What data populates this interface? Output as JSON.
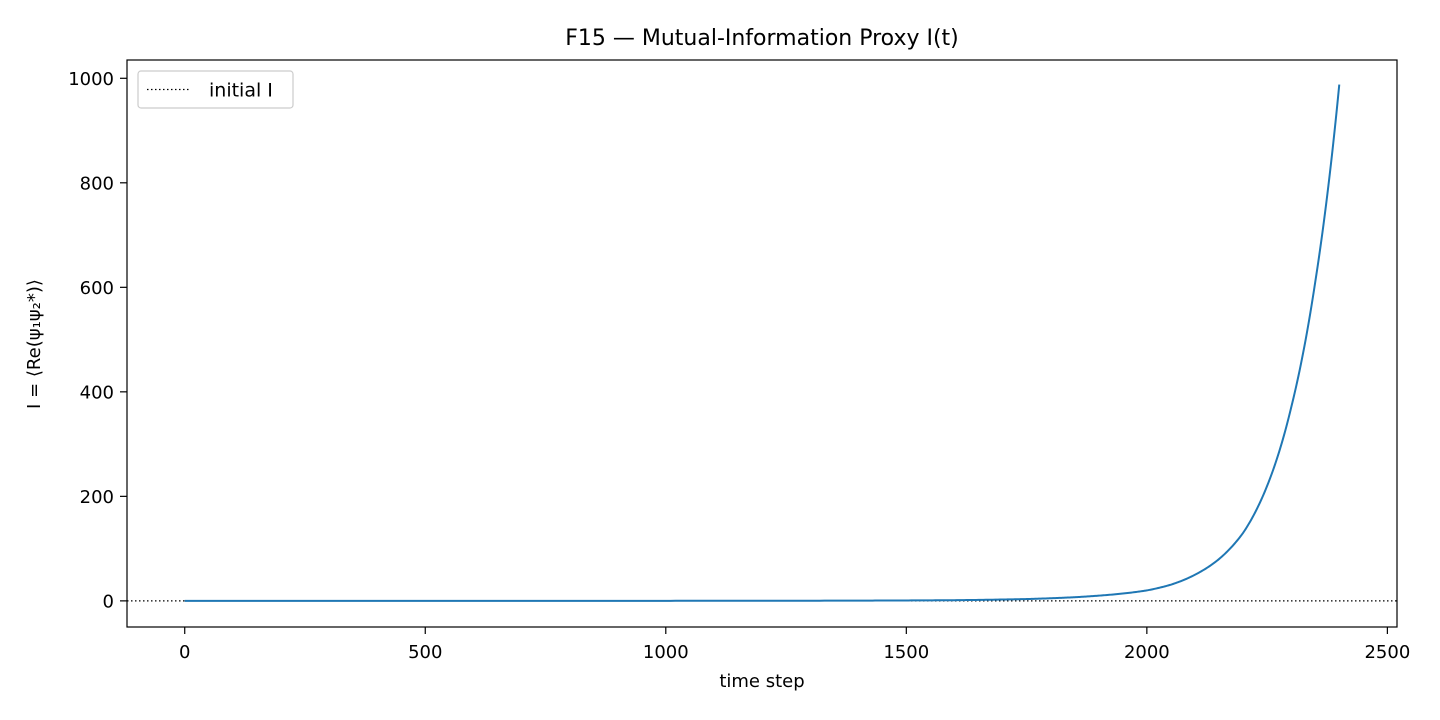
{
  "chart_data": {
    "type": "line",
    "title": "F15 — Mutual-Information Proxy I(t)",
    "xlabel": "time step",
    "ylabel": "I = ⟨Re(ψ₁ψ₂*)⟩",
    "xlim": [
      -120,
      2520
    ],
    "ylim": [
      -50,
      1035
    ],
    "xticks": [
      0,
      500,
      1000,
      1500,
      2000,
      2500
    ],
    "yticks": [
      0,
      200,
      400,
      600,
      800,
      1000
    ],
    "grid": false,
    "legend": {
      "placement": "top-left",
      "entries": [
        "initial I"
      ]
    },
    "series": [
      {
        "name": "",
        "color": "#1f77b4",
        "x": [
          0,
          500,
          1000,
          1200,
          1400,
          1500,
          1600,
          1700,
          1750,
          1800,
          1850,
          1900,
          1950,
          2000,
          2050,
          2100,
          2150,
          2200,
          2250,
          2300,
          2350,
          2400
        ],
        "y": [
          0.0,
          0.02,
          0.1,
          0.2,
          0.5,
          0.8,
          1.3,
          2.6,
          3.5,
          5.0,
          7.0,
          10.0,
          14.0,
          20.0,
          31.0,
          50.0,
          80.0,
          130.0,
          220.0,
          370.0,
          610.0,
          988.0
        ]
      }
    ],
    "hlines": [
      {
        "name": "initial I",
        "y": 0,
        "style": "dotted",
        "color": "#000000"
      }
    ]
  }
}
